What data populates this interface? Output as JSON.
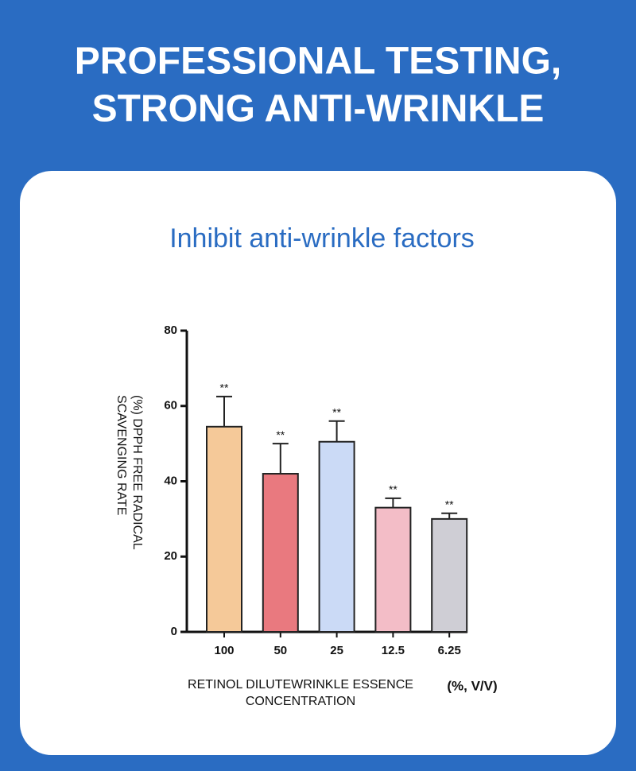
{
  "header": {
    "title_lines": [
      "PROFESSIONAL TESTING,",
      "STRONG ANTI-WRINKLE"
    ]
  },
  "chart_data": {
    "type": "bar",
    "title": "Inhibit anti-wrinkle factors",
    "y_label_lines": [
      "(%) DPPH FREE RADICAL",
      "SCAVENGING RATE"
    ],
    "x_label_lines": [
      "RETINOL DILUTEWRINKLE ESSENCE",
      "CONCENTRATION"
    ],
    "x_unit": "(%, V/V)",
    "categories": [
      "100",
      "50",
      "25",
      "12.5",
      "6.25"
    ],
    "values": [
      54.5,
      42,
      50.5,
      33,
      30
    ],
    "errors": [
      8,
      8,
      5.5,
      2.5,
      1.5
    ],
    "significance": [
      "**",
      "**",
      "**",
      "**",
      "**"
    ],
    "colors": [
      "#f5c999",
      "#e9797f",
      "#cbdaf6",
      "#f3bdc7",
      "#cfced5"
    ],
    "ylim": [
      0,
      80
    ],
    "yticks": [
      0,
      20,
      40,
      60,
      80
    ]
  }
}
